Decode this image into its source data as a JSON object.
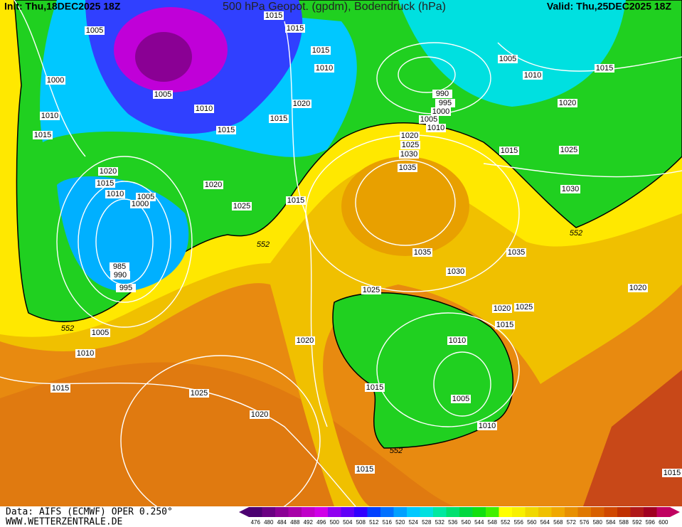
{
  "header": {
    "init": "Init: Thu,18DEC2025 18Z",
    "title": "500 hPa Geopot. (gpdm), Bodendruck (hPa)",
    "valid": "Valid: Thu,25DEC2025 18Z"
  },
  "isobar_labels": [
    "1005",
    "1000",
    "1010",
    "1015",
    "1005",
    "1010",
    "1015",
    "1015",
    "1020",
    "1015",
    "1015",
    "1015",
    "1010",
    "1020",
    "1015",
    "1010",
    "1005",
    "1000",
    "1020",
    "1025",
    "1015",
    "985",
    "990",
    "995",
    "1005",
    "1010",
    "1015",
    "1025",
    "1020",
    "1020",
    "1025",
    "1035",
    "1035",
    "1030",
    "1020",
    "1025",
    "1015",
    "1010",
    "1015",
    "1005",
    "1010",
    "1015",
    "990",
    "995",
    "1000",
    "1005",
    "1010",
    "1020",
    "1025",
    "1030",
    "1035",
    "1005",
    "1010",
    "1015",
    "1020",
    "1015",
    "1025",
    "1030",
    "1020",
    "1015"
  ],
  "contour_labels": [
    "552",
    "552",
    "552",
    "552"
  ],
  "footer": {
    "source": "Data: AIFS (ECMWF) OPER 0.250°",
    "site": "WWW.WETTERZENTRALE.DE"
  },
  "colorbar": {
    "ticks": [
      476,
      480,
      484,
      488,
      492,
      496,
      500,
      504,
      508,
      512,
      516,
      520,
      524,
      528,
      532,
      536,
      540,
      544,
      548,
      552,
      556,
      560,
      564,
      568,
      572,
      576,
      580,
      584,
      588,
      592,
      596,
      600
    ],
    "colors": [
      "#4b0070",
      "#6a0082",
      "#8a0094",
      "#a800a8",
      "#c000c8",
      "#d000e8",
      "#9000f0",
      "#6000f8",
      "#3000ff",
      "#0040ff",
      "#0070ff",
      "#00a0ff",
      "#00c8ff",
      "#00e0e0",
      "#00e8a0",
      "#00e070",
      "#00d840",
      "#10e010",
      "#40f000",
      "#ffff00",
      "#f8f000",
      "#f0d800",
      "#f0c000",
      "#f0a800",
      "#e89000",
      "#e07800",
      "#d86000",
      "#d04800",
      "#c03000",
      "#b01818",
      "#a00020",
      "#c00060"
    ]
  }
}
